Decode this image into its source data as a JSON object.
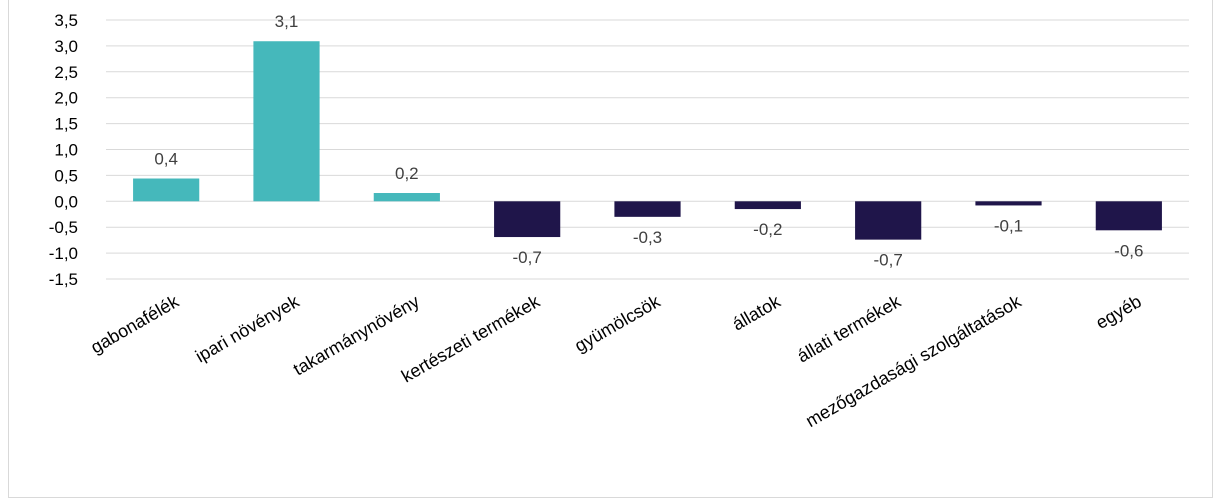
{
  "chart_data": {
    "type": "bar",
    "title": "",
    "xlabel": "",
    "ylabel": "",
    "ylim": [
      -1.5,
      3.5
    ],
    "ytick_step": 0.5,
    "yticks": [
      "-1,5",
      "-1,0",
      "-0,5",
      "0,0",
      "0,5",
      "1,0",
      "1,5",
      "2,0",
      "2,5",
      "3,0",
      "3,5"
    ],
    "grid": true,
    "legend": "none",
    "categories": [
      "gabonafélék",
      "ipari növények",
      "takarmánynövény",
      "kertészeti termékek",
      "gyümölcsök",
      "állatok",
      "állati termékek",
      "mezőgazdasági szolgáltatások",
      "egyéb"
    ],
    "values": [
      0.44,
      3.09,
      0.16,
      -0.69,
      -0.3,
      -0.15,
      -0.74,
      -0.08,
      -0.56
    ],
    "data_labels": [
      "0,4",
      "3,1",
      "0,2",
      "-0,7",
      "-0,3",
      "-0,2",
      "-0,7",
      "-0,1",
      "-0,6"
    ],
    "colors": {
      "positive": "#45b8bb",
      "negative": "#1f154a",
      "grid": "#d9d9d9"
    }
  }
}
